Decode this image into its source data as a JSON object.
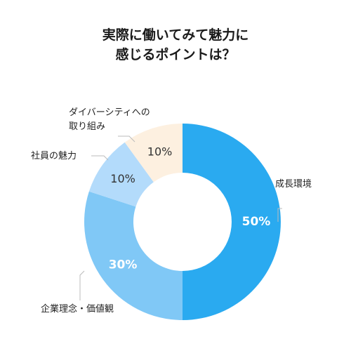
{
  "title_lines": [
    "実際に働いてみて魅力に",
    "感じるポイントは？"
  ],
  "chart_data": {
    "type": "pie",
    "title": "実際に働いてみて魅力に感じるポイントは？",
    "categories": [
      "成長環境",
      "企業理念・価値観",
      "社員の魅力",
      "ダイバーシティへの取り組み"
    ],
    "legend_lines": [
      [
        "成長環境"
      ],
      [
        "企業理念・価値観"
      ],
      [
        "社員の魅力"
      ],
      [
        "ダイバーシティへの",
        "取り組み"
      ]
    ],
    "values": [
      50,
      30,
      10,
      10
    ],
    "value_labels": [
      "50%",
      "30%",
      "10%",
      "10%"
    ],
    "colors": [
      "#2aaaf0",
      "#80c8f6",
      "#b3dbfb",
      "#fdf0e0"
    ],
    "value_label_colors": [
      "#ffffff",
      "#ffffff",
      "#333333",
      "#333333"
    ],
    "donut": true
  }
}
